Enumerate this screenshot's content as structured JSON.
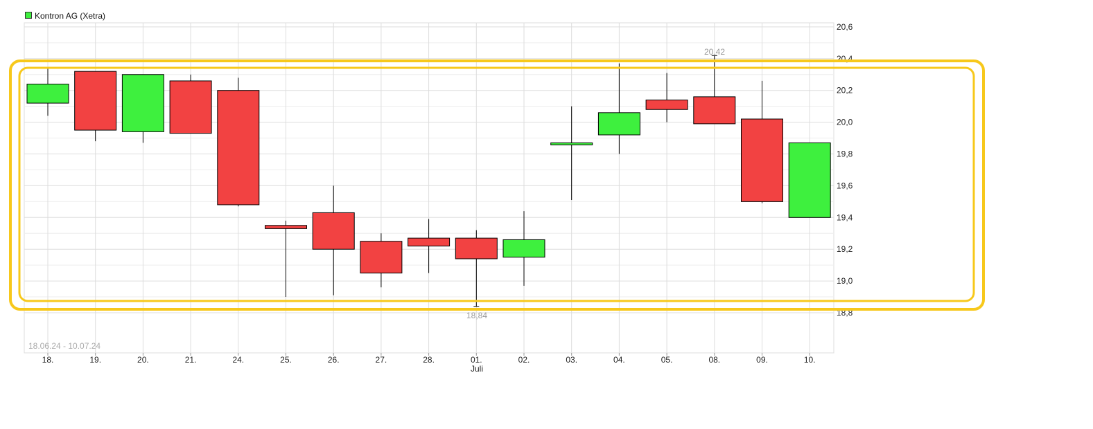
{
  "legend": {
    "label": "Kontron AG (Xetra)",
    "color": "#3ef03e"
  },
  "date_range": "18.06.24 - 10.07.24",
  "month_label": "Juli",
  "high_label": "20,42",
  "low_label": "18,84",
  "colors": {
    "up": "#3ef03e",
    "down": "#f24242",
    "grid": "#dddddd",
    "highlight": "#f7c81b"
  },
  "chart_data": {
    "type": "candlestick",
    "y_ticks": [
      "18,8",
      "19,0",
      "19,2",
      "19,4",
      "19,6",
      "19,8",
      "20,0",
      "20,2",
      "20,4",
      "20,6"
    ],
    "y_tick_values": [
      18.8,
      19.0,
      19.2,
      19.4,
      19.6,
      19.8,
      20.0,
      20.2,
      20.4,
      20.6
    ],
    "ylim": [
      18.35,
      20.65
    ],
    "y_axis_side": "right",
    "grid": true,
    "legend_position": "top-left",
    "candles": [
      {
        "x": "18.",
        "open": 20.12,
        "high": 20.34,
        "low": 20.04,
        "close": 20.24
      },
      {
        "x": "19.",
        "open": 20.32,
        "high": 20.32,
        "low": 19.88,
        "close": 19.95
      },
      {
        "x": "20.",
        "open": 19.94,
        "high": 20.3,
        "low": 19.87,
        "close": 20.3
      },
      {
        "x": "21.",
        "open": 20.26,
        "high": 20.3,
        "low": 19.93,
        "close": 19.93
      },
      {
        "x": "24.",
        "open": 20.2,
        "high": 20.28,
        "low": 19.47,
        "close": 19.48
      },
      {
        "x": "25.",
        "open": 19.35,
        "high": 19.38,
        "low": 18.9,
        "close": 19.33
      },
      {
        "x": "26.",
        "open": 19.43,
        "high": 19.6,
        "low": 18.91,
        "close": 19.2
      },
      {
        "x": "27.",
        "open": 19.25,
        "high": 19.3,
        "low": 18.96,
        "close": 19.05
      },
      {
        "x": "28.",
        "open": 19.27,
        "high": 19.39,
        "low": 19.05,
        "close": 19.22
      },
      {
        "x": "01.",
        "open": 19.27,
        "high": 19.32,
        "low": 18.84,
        "close": 19.14
      },
      {
        "x": "02.",
        "open": 19.15,
        "high": 19.44,
        "low": 18.97,
        "close": 19.26
      },
      {
        "x": "03.",
        "open": 19.86,
        "high": 20.1,
        "low": 19.51,
        "close": 19.87
      },
      {
        "x": "04.",
        "open": 19.92,
        "high": 20.37,
        "low": 19.8,
        "close": 20.06
      },
      {
        "x": "05.",
        "open": 20.14,
        "high": 20.31,
        "low": 20.0,
        "close": 20.08
      },
      {
        "x": "08.",
        "open": 20.16,
        "high": 20.42,
        "low": 19.99,
        "close": 19.99
      },
      {
        "x": "09.",
        "open": 20.02,
        "high": 20.26,
        "low": 19.49,
        "close": 19.5
      },
      {
        "x": "10.",
        "open": 19.4,
        "high": 19.87,
        "low": 19.4,
        "close": 19.87
      }
    ]
  }
}
